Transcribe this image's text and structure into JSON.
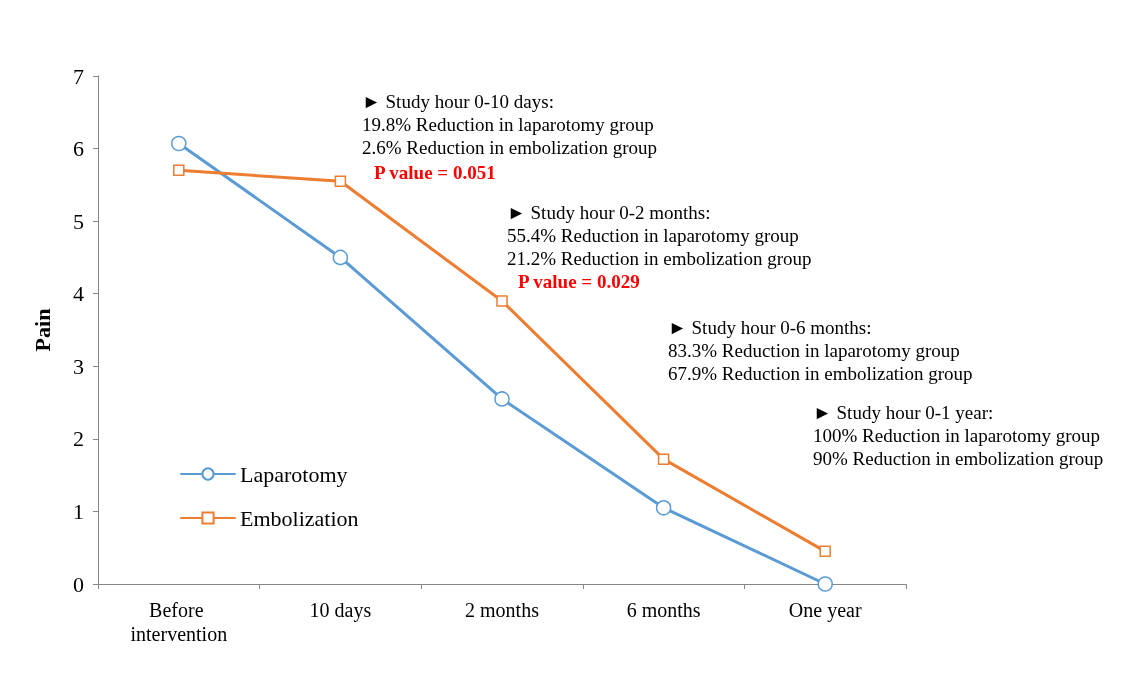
{
  "chart_data": {
    "type": "line",
    "ylabel": "Pain",
    "categories": [
      "Before intervention",
      "10 days",
      "2 months",
      "6 months",
      "One year"
    ],
    "series": [
      {
        "name": "Laparotomy",
        "color": "#5b9bd5",
        "marker": "circle",
        "values": [
          6.07,
          4.5,
          2.55,
          1.05,
          0
        ]
      },
      {
        "name": "Embolization",
        "color": "#ed7d31",
        "marker": "square",
        "values": [
          5.7,
          5.55,
          3.9,
          1.72,
          0.45
        ]
      }
    ],
    "ylim": [
      0,
      7
    ],
    "yticks": [
      0,
      1,
      2,
      3,
      4,
      5,
      6,
      7
    ],
    "grid": false,
    "legend": "bottom left",
    "line_style": "solid",
    "annotations": [
      "► Study hour 0-10 days:\n19.8% Reduction in laparotomy group\n2.6% Reduction in embolization group",
      "P value = 0.051",
      "► Study hour 0-2 months:\n55.4% Reduction in laparotomy group\n21.2% Reduction in embolization group",
      "P value = 0.029",
      "► Study hour 0-6 months:\n83.3% Reduction in laparotomy group\n67.9% Reduction in embolization group",
      "► Study hour 0-1 year:\n100% Reduction in laparotomy group\n90% Reduction in embolization group"
    ]
  }
}
